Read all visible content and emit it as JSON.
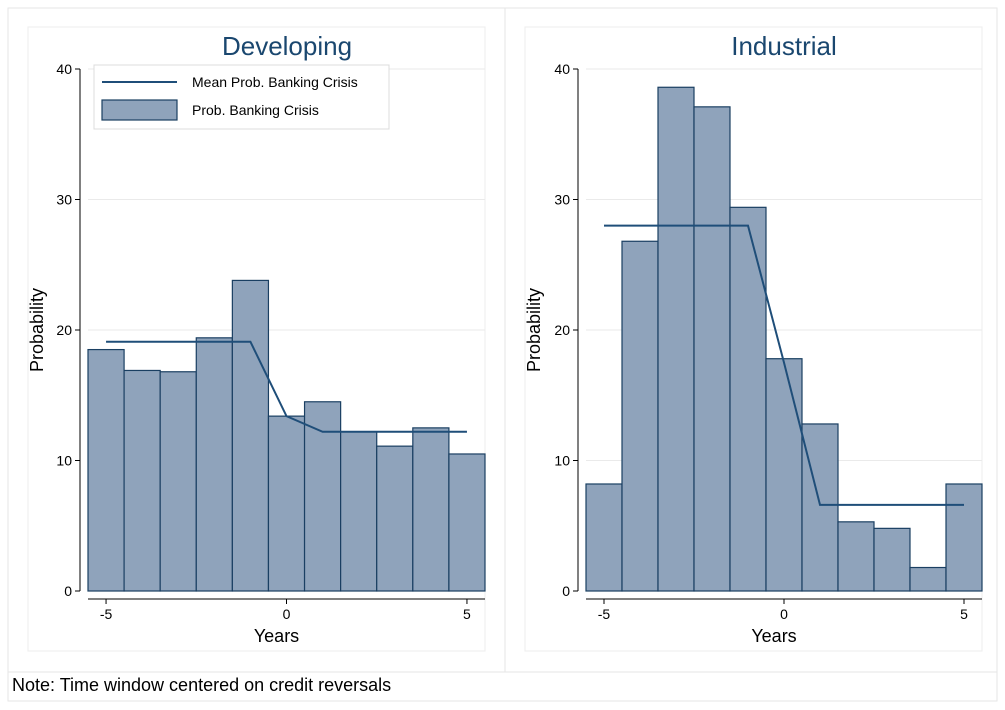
{
  "note": "Note: Time window centered on credit reversals",
  "colors": {
    "bar_fill": "#8fa3bb",
    "bar_stroke": "#1a3f62",
    "line": "#1f4e79",
    "title": "#1a476f",
    "grid": "#eaeaea"
  },
  "chart_data": [
    {
      "type": "bar",
      "title": "Developing",
      "xlabel": "Years",
      "ylabel": "Probability",
      "xlim": [
        -5.5,
        5.5
      ],
      "ylim": [
        0,
        40
      ],
      "xticks": [
        -5,
        0,
        5
      ],
      "yticks": [
        0,
        10,
        20,
        30,
        40
      ],
      "grid": true,
      "legend": {
        "placement": "top-left",
        "entries": [
          "Mean Prob. Banking Crisis",
          "Prob. Banking Crisis"
        ]
      },
      "x": [
        -5,
        -4,
        -3,
        -2,
        -1,
        0,
        1,
        2,
        3,
        4,
        5
      ],
      "series": [
        {
          "name": "Prob. Banking Crisis",
          "type": "bar",
          "values": [
            18.5,
            16.9,
            16.8,
            19.4,
            23.8,
            13.4,
            14.5,
            12.2,
            11.1,
            12.5,
            10.5
          ]
        },
        {
          "name": "Mean Prob. Banking Crisis",
          "type": "line",
          "values": [
            19.1,
            19.1,
            19.1,
            19.1,
            19.1,
            13.4,
            12.2,
            12.2,
            12.2,
            12.2,
            12.2
          ]
        }
      ]
    },
    {
      "type": "bar",
      "title": "Industrial",
      "xlabel": "Years",
      "ylabel": "Probability",
      "xlim": [
        -5.5,
        5.5
      ],
      "ylim": [
        0,
        40
      ],
      "xticks": [
        -5,
        0,
        5
      ],
      "yticks": [
        0,
        10,
        20,
        30,
        40
      ],
      "grid": true,
      "x": [
        -5,
        -4,
        -3,
        -2,
        -1,
        0,
        1,
        2,
        3,
        4,
        5
      ],
      "series": [
        {
          "name": "Prob. Banking Crisis",
          "type": "bar",
          "values": [
            8.2,
            26.8,
            38.6,
            37.1,
            29.4,
            17.8,
            12.8,
            5.3,
            4.8,
            1.8,
            8.2
          ]
        },
        {
          "name": "Mean Prob. Banking Crisis",
          "type": "line",
          "values": [
            28.0,
            28.0,
            28.0,
            28.0,
            28.0,
            17.5,
            6.6,
            6.6,
            6.6,
            6.6,
            6.6
          ]
        }
      ]
    }
  ]
}
